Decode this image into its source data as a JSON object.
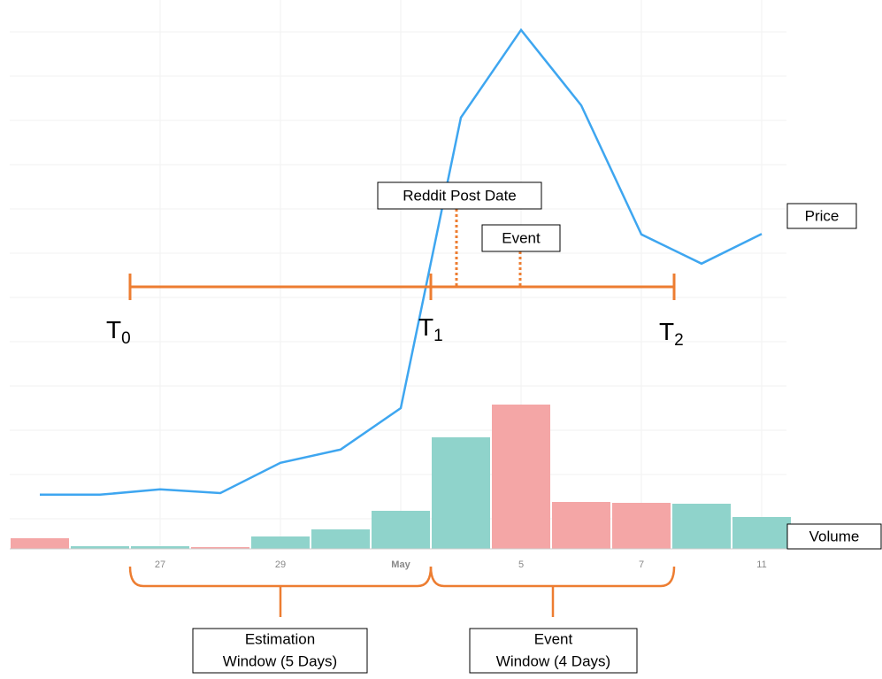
{
  "chart_data": {
    "type": "line",
    "categories": [
      null,
      null,
      "27",
      null,
      "29",
      null,
      "May",
      null,
      "5",
      null,
      "7",
      null,
      "11"
    ],
    "ylim": [
      0,
      100
    ],
    "y2lim": [
      0,
      200
    ],
    "series": [
      {
        "name": "Price",
        "color": "#3ea6f0",
        "values": [
          10.2,
          10.2,
          11.2,
          10.5,
          16.2,
          18.7,
          26.5,
          81.2,
          97.7,
          83.5,
          59.2,
          53.7,
          59.3
        ]
      },
      {
        "name": "Volume",
        "axis": "y2",
        "type": "bar",
        "colors": [
          "#f4a6a6",
          "#8fd3cb",
          "#8fd3cb",
          "#f4a6a6",
          "#8fd3cb",
          "#8fd3cb",
          "#8fd3cb",
          "#8fd3cb",
          "#f4a6a6",
          "#f4a6a6",
          "#f4a6a6",
          "#8fd3cb",
          "#8fd3cb"
        ],
        "values": [
          12,
          3,
          3,
          2,
          14,
          22,
          43,
          126,
          163,
          53,
          52,
          51,
          36
        ]
      }
    ],
    "markers": [
      {
        "label": "T",
        "sub": "0"
      },
      {
        "label": "T",
        "sub": "1"
      },
      {
        "label": "T",
        "sub": "2"
      }
    ],
    "annotations": [
      "Reddit Post Date",
      "Event"
    ],
    "windows": [
      [
        "Estimation",
        "Window (5 Days)"
      ],
      [
        "Event",
        "Window (4 Days)"
      ]
    ]
  }
}
